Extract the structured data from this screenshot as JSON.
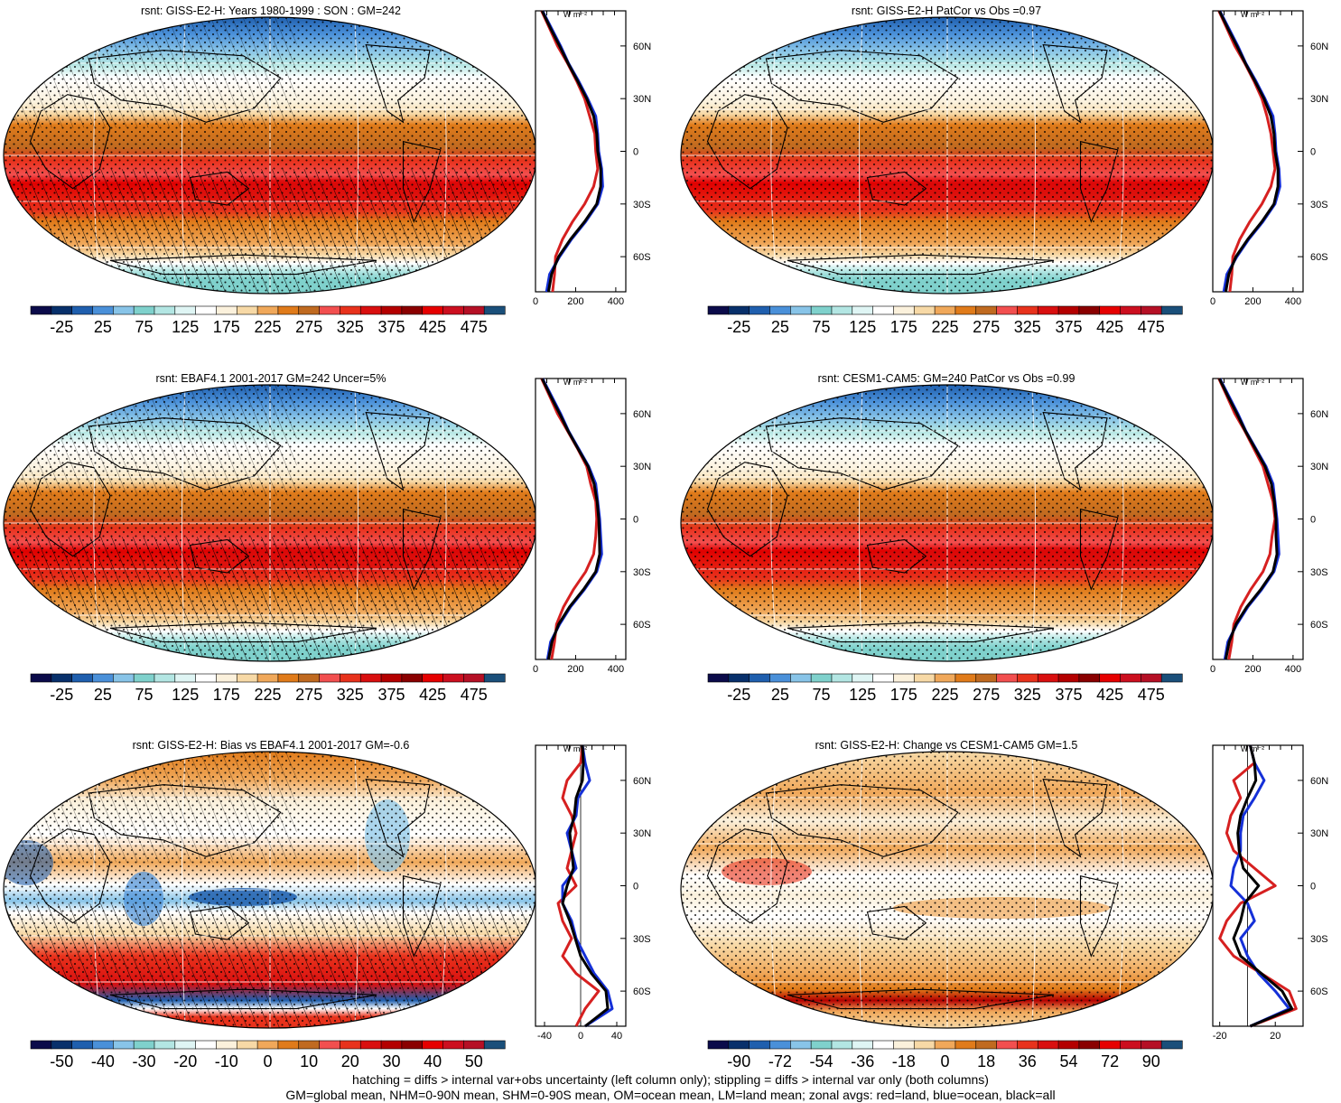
{
  "colors": {
    "abs_palette": [
      "#0b0b4a",
      "#08306b",
      "#1f5fae",
      "#4a90d9",
      "#88c4e8",
      "#7fd1cc",
      "#b3e6e3",
      "#dff5f4",
      "#ffffff",
      "#fbf1dc",
      "#f7d9a6",
      "#f0a85a",
      "#e07b1a",
      "#c06a20",
      "#f24f4f",
      "#e8321c",
      "#d90f0f",
      "#b40000",
      "#8a0000",
      "#e60000",
      "#cc0f1f",
      "#b51025",
      "#1a4f7a"
    ],
    "diff_palette": [
      "#0b0b4a",
      "#08306b",
      "#1f5fae",
      "#4a90d9",
      "#88c4e8",
      "#7fd1cc",
      "#b3e6e3",
      "#dff5f4",
      "#ffffff",
      "#fbf1dc",
      "#f7d9a6",
      "#f0a85a",
      "#e07b1a",
      "#c06a20",
      "#f24f4f",
      "#e8321c",
      "#d90f0f",
      "#b40000",
      "#8a0000",
      "#e60000",
      "#cc0f1f",
      "#b51025",
      "#1a4f7a"
    ],
    "land": "#d62020",
    "ocean": "#1530d8",
    "all": "#000000"
  },
  "footer": {
    "line1": "hatching = diffs > internal var+obs uncertainty (left column only); stippling = diffs > internal var only (both columns)",
    "line2": "GM=global mean, NHM=0-90N mean, SHM=0-90S mean, OM=ocean mean, LM=land mean; zonal avgs: red=land, blue=ocean, black=all"
  },
  "chart_data": [
    {
      "type": "heatmap",
      "title": "rsnt: GISS-E2-H: Years 1980-1999 : SON : GM=242",
      "colorbar_labels": [
        "-25",
        "25",
        "75",
        "125",
        "175",
        "225",
        "275",
        "325",
        "375",
        "425",
        "475"
      ],
      "field": "absolute",
      "hatched": true,
      "stippled": true,
      "zonal": {
        "type": "line",
        "unit": "W m-2",
        "xticks": [
          "0",
          "200",
          "400"
        ],
        "xlim": [
          0,
          450
        ],
        "yticks": [
          "60N",
          "30N",
          "0",
          "30S",
          "60S"
        ],
        "ylim": [
          -80,
          80
        ],
        "lat": [
          80,
          70,
          60,
          50,
          40,
          30,
          20,
          10,
          0,
          -10,
          -20,
          -30,
          -40,
          -50,
          -60,
          -70,
          -80
        ],
        "series": [
          {
            "color": "land",
            "values": [
              30,
              70,
              110,
              160,
              205,
              245,
              270,
              295,
              300,
              310,
              290,
              245,
              185,
              135,
              100,
              95,
              85
            ]
          },
          {
            "color": "ocean",
            "values": [
              35,
              80,
              125,
              165,
              215,
              260,
              300,
              310,
              315,
              330,
              335,
              310,
              250,
              180,
              120,
              70,
              55
            ]
          },
          {
            "color": "all",
            "values": [
              33,
              75,
              120,
              163,
              210,
              255,
              290,
              305,
              310,
              325,
              325,
              305,
              245,
              175,
              115,
              80,
              65
            ]
          }
        ]
      }
    },
    {
      "type": "heatmap",
      "title": "rsnt: GISS-E2-H PatCor vs Obs =0.97",
      "colorbar_labels": [
        "-25",
        "25",
        "75",
        "125",
        "175",
        "225",
        "275",
        "325",
        "375",
        "425",
        "475"
      ],
      "field": "absolute",
      "hatched": false,
      "stippled": true,
      "zonal": {
        "type": "line",
        "unit": "W m-2",
        "xticks": [
          "0",
          "200",
          "400"
        ],
        "xlim": [
          0,
          450
        ],
        "yticks": [
          "60N",
          "30N",
          "0",
          "30S",
          "60S"
        ],
        "ylim": [
          -80,
          80
        ],
        "lat": [
          80,
          70,
          60,
          50,
          40,
          30,
          20,
          10,
          0,
          -10,
          -20,
          -30,
          -40,
          -50,
          -60,
          -70,
          -80
        ],
        "series": [
          {
            "color": "land",
            "values": [
              30,
              70,
              110,
              160,
              205,
              245,
              270,
              290,
              300,
              310,
              290,
              245,
              185,
              135,
              100,
              95,
              85
            ]
          },
          {
            "color": "ocean",
            "values": [
              35,
              80,
              125,
              165,
              215,
              260,
              300,
              310,
              315,
              330,
              335,
              310,
              250,
              180,
              120,
              70,
              55
            ]
          },
          {
            "color": "all",
            "values": [
              33,
              75,
              120,
              163,
              210,
              255,
              290,
              305,
              310,
              325,
              325,
              305,
              245,
              175,
              115,
              80,
              65
            ]
          }
        ]
      }
    },
    {
      "type": "heatmap",
      "title": "rsnt: EBAF4.1 2001-2017 GM=242 Uncer=5%",
      "colorbar_labels": [
        "-25",
        "25",
        "75",
        "125",
        "175",
        "225",
        "275",
        "325",
        "375",
        "425",
        "475"
      ],
      "field": "absolute",
      "hatched": true,
      "stippled": true,
      "zonal": {
        "type": "line",
        "unit": "W m-2",
        "xticks": [
          "0",
          "200",
          "400"
        ],
        "xlim": [
          0,
          450
        ],
        "yticks": [
          "60N",
          "30N",
          "0",
          "30S",
          "60S"
        ],
        "ylim": [
          -80,
          80
        ],
        "lat": [
          80,
          70,
          60,
          50,
          40,
          30,
          20,
          10,
          0,
          -10,
          -20,
          -30,
          -40,
          -50,
          -60,
          -70,
          -80
        ],
        "series": [
          {
            "color": "land",
            "values": [
              30,
              70,
              110,
              160,
              210,
              255,
              275,
              300,
              305,
              300,
              290,
              250,
              190,
              140,
              105,
              95,
              80
            ]
          },
          {
            "color": "ocean",
            "values": [
              35,
              80,
              125,
              165,
              215,
              265,
              300,
              310,
              320,
              325,
              330,
              305,
              245,
              175,
              120,
              75,
              60
            ]
          },
          {
            "color": "all",
            "values": [
              33,
              75,
              120,
              163,
              212,
              262,
              292,
              307,
              315,
              318,
              320,
              300,
              240,
              170,
              115,
              82,
              65
            ]
          }
        ]
      }
    },
    {
      "type": "heatmap",
      "title": "rsnt: CESM1-CAM5: GM=240 PatCor vs Obs =0.99",
      "colorbar_labels": [
        "-25",
        "25",
        "75",
        "125",
        "175",
        "225",
        "275",
        "325",
        "375",
        "425",
        "475"
      ],
      "field": "absolute",
      "hatched": false,
      "stippled": true,
      "zonal": {
        "type": "line",
        "unit": "W m-2",
        "xticks": [
          "0",
          "200",
          "400"
        ],
        "xlim": [
          0,
          450
        ],
        "yticks": [
          "60N",
          "30N",
          "0",
          "30S",
          "60S"
        ],
        "ylim": [
          -80,
          80
        ],
        "lat": [
          80,
          70,
          60,
          50,
          40,
          30,
          20,
          10,
          0,
          -10,
          -20,
          -30,
          -40,
          -50,
          -60,
          -70,
          -80
        ],
        "series": [
          {
            "color": "land",
            "values": [
              30,
              70,
              110,
              160,
              205,
              250,
              275,
              300,
              310,
              295,
              285,
              250,
              190,
              140,
              105,
              95,
              80
            ]
          },
          {
            "color": "ocean",
            "values": [
              35,
              80,
              125,
              165,
              215,
              265,
              300,
              310,
              320,
              325,
              330,
              305,
              245,
              175,
              120,
              75,
              60
            ]
          },
          {
            "color": "all",
            "values": [
              33,
              75,
              120,
              163,
              212,
              260,
              292,
              307,
              315,
              315,
              320,
              300,
              240,
              170,
              115,
              82,
              65
            ]
          }
        ]
      }
    },
    {
      "type": "heatmap",
      "title": "rsnt: GISS-E2-H: Bias vs EBAF4.1 2001-2017  GM=-0.6",
      "colorbar_labels": [
        "-50",
        "-40",
        "-30",
        "-20",
        "-10",
        "0",
        "10",
        "20",
        "30",
        "40",
        "50"
      ],
      "field": "bias",
      "hatched": true,
      "stippled": true,
      "zonal": {
        "type": "line",
        "unit": "W m-2",
        "xticks": [
          "-40",
          "0",
          "40"
        ],
        "xlim": [
          -50,
          50
        ],
        "yticks": [
          "60N",
          "30N",
          "0",
          "30S",
          "60S"
        ],
        "ylim": [
          -80,
          80
        ],
        "lat": [
          80,
          70,
          60,
          50,
          40,
          30,
          20,
          10,
          0,
          -10,
          -20,
          -30,
          -40,
          -50,
          -60,
          -70,
          -80
        ],
        "series": [
          {
            "color": "land",
            "values": [
              2,
              0,
              -15,
              -20,
              -10,
              -5,
              -10,
              -15,
              -5,
              -25,
              -20,
              -10,
              -20,
              -5,
              20,
              5,
              -5
            ]
          },
          {
            "color": "ocean",
            "values": [
              2,
              5,
              10,
              -3,
              -5,
              -15,
              -10,
              -5,
              -20,
              -20,
              -10,
              -5,
              5,
              15,
              30,
              35,
              5
            ]
          },
          {
            "color": "all",
            "values": [
              2,
              3,
              2,
              -5,
              -7,
              -12,
              -10,
              -8,
              -15,
              -20,
              -12,
              -6,
              0,
              12,
              28,
              30,
              5
            ]
          }
        ]
      }
    },
    {
      "type": "heatmap",
      "title": "rsnt: GISS-E2-H: Change vs CESM1-CAM5 GM=1.5",
      "colorbar_labels": [
        "-90",
        "-72",
        "-54",
        "-36",
        "-18",
        "0",
        "18",
        "36",
        "54",
        "72",
        "90"
      ],
      "field": "change",
      "hatched": false,
      "stippled": true,
      "zonal": {
        "type": "line",
        "unit": "W m-2",
        "xticks": [
          "-20",
          "20"
        ],
        "xlim": [
          -25,
          40
        ],
        "yticks": [
          "60N",
          "30N",
          "0",
          "30S",
          "60S"
        ],
        "ylim": [
          -80,
          80
        ],
        "lat": [
          80,
          70,
          60,
          50,
          40,
          30,
          20,
          10,
          0,
          -10,
          -20,
          -30,
          -40,
          -50,
          -60,
          -70,
          -80
        ],
        "series": [
          {
            "color": "land",
            "values": [
              2,
              5,
              -10,
              -5,
              -12,
              -15,
              -10,
              5,
              20,
              -5,
              -15,
              -20,
              -10,
              10,
              30,
              35,
              2
            ]
          },
          {
            "color": "ocean",
            "values": [
              2,
              5,
              12,
              5,
              -3,
              -5,
              -5,
              -10,
              -12,
              0,
              5,
              -5,
              0,
              8,
              20,
              30,
              2
            ]
          },
          {
            "color": "all",
            "values": [
              2,
              5,
              6,
              0,
              -5,
              -7,
              -6,
              -3,
              8,
              -2,
              -5,
              -10,
              -5,
              10,
              25,
              32,
              2
            ]
          }
        ]
      }
    }
  ]
}
